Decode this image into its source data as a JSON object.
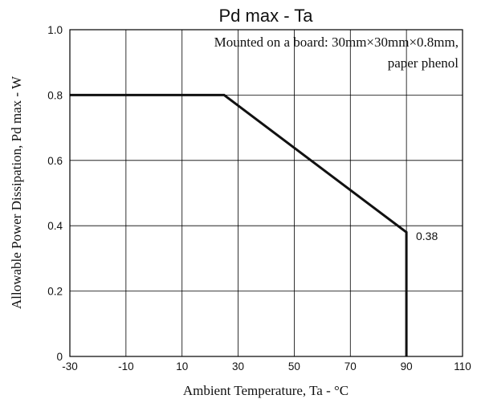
{
  "chart_data": {
    "type": "line",
    "title": "Pd max - Ta",
    "xlabel": "Ambient Temperature, Ta - °C",
    "ylabel": "Allowable Power Dissipation, Pd max - W",
    "xlim": [
      -30,
      110
    ],
    "ylim": [
      0,
      1.0
    ],
    "x_ticks": [
      -30,
      -10,
      10,
      30,
      50,
      70,
      90,
      110
    ],
    "x_tick_labels": [
      "-30",
      "-10",
      "10",
      "30",
      "50",
      "70",
      "90",
      "110"
    ],
    "y_ticks": [
      0,
      0.2,
      0.4,
      0.6,
      0.8,
      1.0
    ],
    "y_tick_labels": [
      "0",
      "0.2",
      "0.4",
      "0.6",
      "0.8",
      "1.0"
    ],
    "grid": true,
    "series": [
      {
        "x": [
          -30,
          25,
          90,
          90
        ],
        "y": [
          0.8,
          0.8,
          0.38,
          0
        ]
      }
    ],
    "annotations": [
      {
        "text": "Mounted on a board: 30mm×30mm×0.8mm,",
        "position": "top-right"
      },
      {
        "text": "paper phenol",
        "position": "top-right"
      },
      {
        "text": "0.38",
        "x": 90,
        "y": 0.38
      }
    ]
  }
}
